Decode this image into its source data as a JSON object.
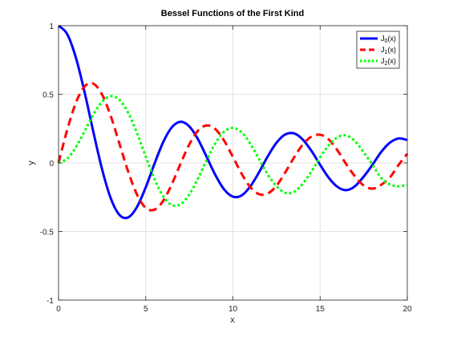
{
  "chart_data": {
    "type": "line",
    "title": "Bessel Functions of the First Kind",
    "xlabel": "x",
    "ylabel": "y",
    "xlim": [
      0,
      20
    ],
    "ylim": [
      -1,
      1
    ],
    "xticks": [
      0,
      5,
      10,
      15,
      20
    ],
    "xtick_labels": [
      "0",
      "5",
      "10",
      "15",
      "20"
    ],
    "yticks": [
      -1,
      -0.5,
      0,
      0.5,
      1
    ],
    "ytick_labels": [
      "-1",
      "-0.5",
      "0",
      "0.5",
      "1"
    ],
    "grid": true,
    "legend_position": "top-right",
    "x": [
      0,
      0.5,
      1,
      1.5,
      2,
      2.5,
      3,
      3.5,
      4,
      4.5,
      5,
      5.5,
      6,
      6.5,
      7,
      7.5,
      8,
      8.5,
      9,
      9.5,
      10,
      10.5,
      11,
      11.5,
      12,
      12.5,
      13,
      13.5,
      14,
      14.5,
      15,
      15.5,
      16,
      16.5,
      17,
      17.5,
      18,
      18.5,
      19,
      19.5,
      20
    ],
    "series": [
      {
        "name": "J0(x)",
        "label_base": "J",
        "label_sub": "0",
        "label_suffix": "(x)",
        "color": "#0000ff",
        "style": "solid",
        "values": [
          1.0,
          0.938,
          0.765,
          0.512,
          0.224,
          -0.048,
          -0.26,
          -0.38,
          -0.397,
          -0.321,
          -0.178,
          -0.007,
          0.151,
          0.26,
          0.3,
          0.266,
          0.172,
          0.042,
          -0.09,
          -0.194,
          -0.246,
          -0.237,
          -0.171,
          -0.068,
          0.048,
          0.147,
          0.207,
          0.215,
          0.171,
          0.088,
          -0.014,
          -0.109,
          -0.175,
          -0.199,
          -0.17,
          -0.1,
          -0.014,
          0.079,
          0.147,
          0.178,
          0.167
        ]
      },
      {
        "name": "J1(x)",
        "label_base": "J",
        "label_sub": "1",
        "label_suffix": "(x)",
        "color": "#ff0000",
        "style": "dashed",
        "values": [
          0.0,
          0.242,
          0.44,
          0.558,
          0.577,
          0.497,
          0.339,
          0.137,
          -0.066,
          -0.231,
          -0.328,
          -0.341,
          -0.277,
          -0.154,
          -0.005,
          0.135,
          0.235,
          0.273,
          0.245,
          0.161,
          0.043,
          -0.079,
          -0.177,
          -0.228,
          -0.223,
          -0.166,
          -0.07,
          0.038,
          0.133,
          0.191,
          0.205,
          0.17,
          0.09,
          -0.01,
          -0.098,
          -0.165,
          -0.188,
          -0.16,
          -0.106,
          -0.015,
          0.067
        ]
      },
      {
        "name": "J2(x)",
        "label_base": "J",
        "label_sub": "2",
        "label_suffix": "(x)",
        "color": "#00ff00",
        "style": "dotted",
        "values": [
          0.0,
          0.031,
          0.115,
          0.232,
          0.353,
          0.446,
          0.486,
          0.459,
          0.364,
          0.218,
          0.047,
          -0.117,
          -0.243,
          -0.307,
          -0.301,
          -0.23,
          -0.113,
          0.022,
          0.145,
          0.228,
          0.255,
          0.223,
          0.139,
          0.028,
          -0.085,
          -0.17,
          -0.218,
          -0.212,
          -0.152,
          -0.063,
          0.042,
          0.129,
          0.186,
          0.2,
          0.158,
          0.077,
          -0.013,
          -0.11,
          -0.157,
          -0.17,
          -0.16
        ]
      }
    ]
  }
}
